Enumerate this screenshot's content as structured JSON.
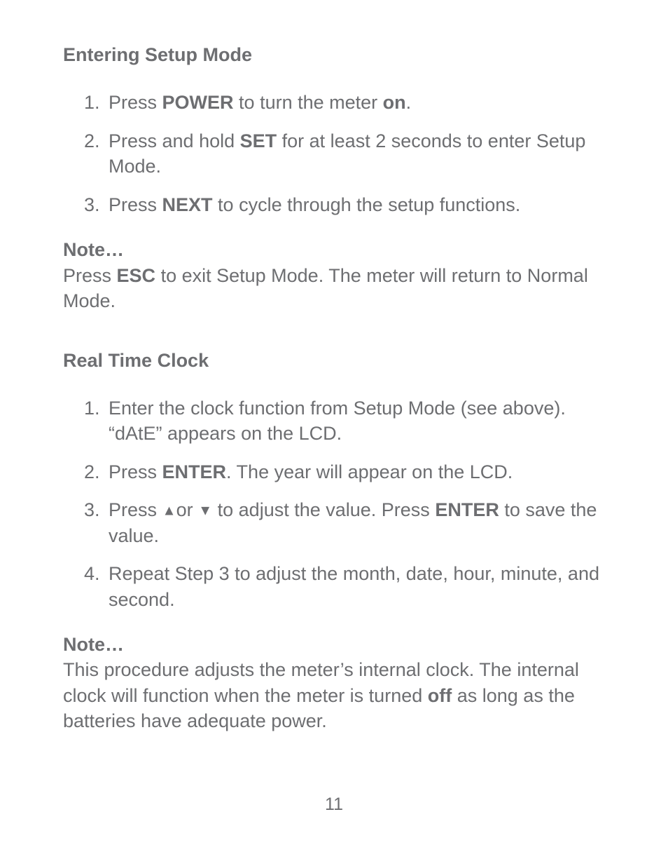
{
  "section1": {
    "title": "Entering Setup Mode",
    "steps": [
      {
        "pre": "Press ",
        "k1": "POWER",
        "mid": " to turn the meter ",
        "k2": "on",
        "post": "."
      },
      {
        "pre": "Press and hold ",
        "k1": "SET",
        "mid": " for at least 2 seconds to enter Setup Mode.",
        "k2": "",
        "post": ""
      },
      {
        "pre": "Press ",
        "k1": "NEXT",
        "mid": " to cycle through the setup functions.",
        "k2": "",
        "post": ""
      }
    ]
  },
  "note1": {
    "label": "Note…",
    "pre": "Press ",
    "k1": "ESC",
    "post": " to exit Setup Mode. The meter will return to Normal Mode."
  },
  "section2": {
    "title": "Real Time Clock",
    "steps": [
      {
        "pre": "Enter the clock function from Setup Mode (see above). “dAtE” appears on the LCD.",
        "k1": "",
        "mid": "",
        "k2": "",
        "post": ""
      },
      {
        "pre": "Press ",
        "k1": "ENTER",
        "mid": ". The year will appear on the LCD.",
        "k2": "",
        "post": ""
      },
      {
        "pre": "Press ",
        "arrowUp": "▲",
        "midArrow": "or ",
        "arrowDown": "▼",
        "mid2": " to adjust the value. Press ",
        "k1": "ENTER",
        "post": " to save the value."
      },
      {
        "pre": "Repeat Step 3 to adjust the month, date, hour, minute, and second.",
        "k1": "",
        "mid": "",
        "k2": "",
        "post": ""
      }
    ]
  },
  "note2": {
    "label": "Note…",
    "pre": "This procedure adjusts the meter’s internal clock. The internal clock will function when the meter is turned ",
    "k1": "off",
    "post": " as long as the batteries have adequate power."
  },
  "pageNumber": "11",
  "colors": {
    "text": "#6d6e71",
    "background": "#ffffff"
  }
}
